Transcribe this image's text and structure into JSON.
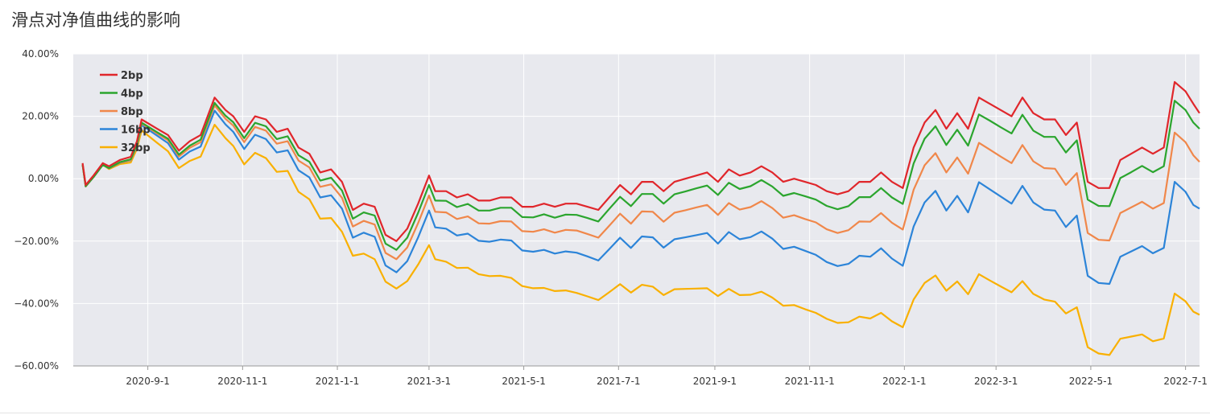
{
  "chart_data": {
    "type": "line",
    "title": "滑点对净值曲线的影响",
    "x_start": "2020-07-15",
    "x_end": "2022-07-10",
    "ylim": [
      -60,
      40
    ],
    "y_ticks": [
      40,
      20,
      0,
      -20,
      -40,
      -60
    ],
    "y_tick_labels": [
      "40.00%",
      "20.00%",
      "0.00%",
      "−20.00%",
      "−40.00%",
      "−60.00%"
    ],
    "x_ticks": [
      "2020-09-01",
      "2020-11-01",
      "2021-01-01",
      "2021-03-01",
      "2021-05-01",
      "2021-07-01",
      "2021-09-01",
      "2021-11-01",
      "2022-01-01",
      "2022-03-01",
      "2022-05-01",
      "2022-07-01"
    ],
    "x_tick_labels": [
      "2020-9-1",
      "2020-11-1",
      "2021-1-1",
      "2021-3-1",
      "2021-5-1",
      "2021-7-1",
      "2021-9-1",
      "2021-11-1",
      "2022-1-1",
      "2022-3-1",
      "2022-5-1",
      "2022-7-1"
    ],
    "grid": true,
    "legend_position": "top-left",
    "x": [
      "2020-07-21",
      "2020-07-23",
      "2020-07-28",
      "2020-08-03",
      "2020-08-07",
      "2020-08-14",
      "2020-08-21",
      "2020-08-25",
      "2020-08-28",
      "2020-09-07",
      "2020-09-14",
      "2020-09-21",
      "2020-09-28",
      "2020-10-05",
      "2020-10-14",
      "2020-10-21",
      "2020-10-26",
      "2020-11-02",
      "2020-11-09",
      "2020-11-16",
      "2020-11-23",
      "2020-11-30",
      "2020-12-07",
      "2020-12-14",
      "2020-12-21",
      "2020-12-28",
      "2021-01-04",
      "2021-01-11",
      "2021-01-18",
      "2021-01-25",
      "2021-02-01",
      "2021-02-08",
      "2021-02-15",
      "2021-02-22",
      "2021-03-01",
      "2021-03-05",
      "2021-03-12",
      "2021-03-19",
      "2021-03-26",
      "2021-04-02",
      "2021-04-09",
      "2021-04-16",
      "2021-04-23",
      "2021-04-30",
      "2021-05-07",
      "2021-05-14",
      "2021-05-21",
      "2021-05-28",
      "2021-06-04",
      "2021-06-11",
      "2021-06-18",
      "2021-06-25",
      "2021-07-02",
      "2021-07-09",
      "2021-07-16",
      "2021-07-23",
      "2021-07-30",
      "2021-08-06",
      "2021-08-13",
      "2021-08-20",
      "2021-08-27",
      "2021-09-03",
      "2021-09-10",
      "2021-09-17",
      "2021-09-24",
      "2021-10-01",
      "2021-10-08",
      "2021-10-15",
      "2021-10-22",
      "2021-10-29",
      "2021-11-05",
      "2021-11-12",
      "2021-11-19",
      "2021-11-26",
      "2021-12-03",
      "2021-12-10",
      "2021-12-17",
      "2021-12-24",
      "2021-12-31",
      "2022-01-07",
      "2022-01-14",
      "2022-01-21",
      "2022-01-28",
      "2022-02-04",
      "2022-02-11",
      "2022-02-18",
      "2022-02-25",
      "2022-03-04",
      "2022-03-11",
      "2022-03-18",
      "2022-03-25",
      "2022-04-01",
      "2022-04-08",
      "2022-04-15",
      "2022-04-22",
      "2022-04-29",
      "2022-05-06",
      "2022-05-13",
      "2022-05-20",
      "2022-05-27",
      "2022-06-03",
      "2022-06-10",
      "2022-06-17",
      "2022-06-24",
      "2022-07-01",
      "2022-07-06",
      "2022-07-10"
    ],
    "series": [
      {
        "name": "2bp",
        "color": "#e0262b",
        "values": [
          5,
          -2,
          1,
          5,
          4,
          6,
          7,
          12,
          19,
          16,
          14,
          9,
          12,
          14,
          26,
          22,
          20,
          15,
          20,
          19,
          15,
          16,
          10,
          8,
          2,
          3,
          -1,
          -10,
          -8,
          -9,
          -18,
          -20,
          -16,
          -8,
          1,
          -4,
          -4,
          -6,
          -5,
          -7,
          -7,
          -6,
          -6,
          -9,
          -9,
          -8,
          -9,
          -8,
          -8,
          -9,
          -10,
          -6,
          -2,
          -5,
          -1,
          -1,
          -4,
          -1,
          0,
          1,
          2,
          -1,
          3,
          1,
          2,
          4,
          2,
          -1,
          0,
          -1,
          -2,
          -4,
          -5,
          -4,
          -1,
          -1,
          2,
          -1,
          -3,
          10,
          18,
          22,
          16,
          21,
          16,
          26,
          24,
          22,
          20,
          26,
          21,
          19,
          19,
          14,
          18,
          -1,
          -3,
          -3,
          6,
          8,
          10,
          8,
          10,
          31,
          28,
          24,
          21
        ]
      },
      {
        "name": "4bp",
        "color": "#2ba52e",
        "values": [
          4.5,
          -2.4,
          0.5,
          4.4,
          3.4,
          5.3,
          6.2,
          11.1,
          18,
          14.9,
          12.8,
          7.7,
          10.6,
          12.5,
          24.3,
          20.2,
          18.1,
          13,
          17.9,
          16.8,
          12.7,
          13.6,
          7.5,
          5.4,
          -0.6,
          0.3,
          -3.8,
          -12.8,
          -10.8,
          -11.8,
          -20.8,
          -22.8,
          -18.9,
          -10.9,
          -2,
          -7,
          -7.1,
          -9.1,
          -8.1,
          -10.2,
          -10.2,
          -9.3,
          -9.3,
          -12.3,
          -12.4,
          -11.4,
          -12.5,
          -11.5,
          -11.6,
          -12.6,
          -13.7,
          -9.7,
          -5.8,
          -8.8,
          -4.9,
          -4.9,
          -8,
          -5,
          -4.1,
          -3.1,
          -2.2,
          -5.2,
          -1.3,
          -3.3,
          -2.4,
          -0.4,
          -2.5,
          -5.5,
          -4.6,
          -5.6,
          -6.7,
          -8.7,
          -9.8,
          -8.8,
          -5.9,
          -5.9,
          -3,
          -6,
          -8.1,
          4.9,
          12.8,
          16.8,
          10.8,
          15.7,
          10.6,
          20.6,
          18.6,
          16.5,
          14.5,
          20.5,
          15.4,
          13.4,
          13.4,
          8.4,
          12.3,
          -6.7,
          -8.7,
          -8.8,
          0.2,
          2.1,
          4.1,
          2.1,
          4,
          25,
          22,
          18,
          16
        ]
      },
      {
        "name": "8bp",
        "color": "#f0874a",
        "values": [
          4.5,
          -2.5,
          0.5,
          4.5,
          3.3,
          5.2,
          6,
          10.9,
          17.7,
          14.5,
          12.3,
          7.1,
          9.9,
          11.7,
          23.5,
          19.2,
          17,
          11.7,
          16.6,
          15.4,
          11.2,
          12,
          5.8,
          3.6,
          -2.6,
          -1.8,
          -6.1,
          -15.3,
          -13.5,
          -14.7,
          -23.8,
          -25.8,
          -22,
          -14.2,
          -5.4,
          -10.6,
          -10.8,
          -12.9,
          -12.1,
          -14.3,
          -14.4,
          -13.6,
          -13.7,
          -16.8,
          -17,
          -16.2,
          -17.3,
          -16.4,
          -16.6,
          -17.7,
          -18.9,
          -15.1,
          -11.2,
          -14.4,
          -10.5,
          -10.6,
          -13.8,
          -10.9,
          -10.1,
          -9.2,
          -8.4,
          -11.6,
          -7.8,
          -9.9,
          -9.1,
          -7.2,
          -9.4,
          -12.5,
          -11.7,
          -12.9,
          -14,
          -16.2,
          -17.4,
          -16.5,
          -13.7,
          -13.8,
          -11,
          -14.1,
          -16.3,
          -3.5,
          4.3,
          8.2,
          2,
          6.8,
          1.6,
          11.5,
          9.3,
          7.1,
          5,
          10.8,
          5.6,
          3.4,
          3.2,
          -2,
          1.8,
          -17.4,
          -19.6,
          -19.8,
          -11,
          -9.2,
          -7.4,
          -9.6,
          -7.8,
          14.8,
          11.7,
          7.5,
          5.4
        ]
      },
      {
        "name": "16bp",
        "color": "#2c84d8",
        "values": [
          4.5,
          -2.5,
          0.5,
          4.5,
          3.3,
          5.1,
          5.9,
          10.6,
          17.2,
          13.8,
          11.4,
          6.1,
          8.7,
          10.3,
          21.8,
          17.4,
          15,
          9.5,
          14.1,
          12.7,
          8.4,
          9.1,
          2.7,
          0.4,
          -6,
          -5.3,
          -9.6,
          -18.9,
          -17.3,
          -18.6,
          -27.8,
          -30,
          -26.4,
          -18.8,
          -10.2,
          -15.6,
          -16,
          -18.2,
          -17.6,
          -19.9,
          -20.2,
          -19.5,
          -19.8,
          -23,
          -23.4,
          -22.8,
          -24,
          -23.3,
          -23.7,
          -24.9,
          -26.2,
          -22.6,
          -18.9,
          -22.2,
          -18.5,
          -18.8,
          -22.1,
          -19.4,
          -18.8,
          -18.1,
          -17.4,
          -20.8,
          -17.1,
          -19.4,
          -18.7,
          -16.9,
          -19.2,
          -22.5,
          -21.8,
          -23.1,
          -24.4,
          -26.7,
          -28,
          -27.3,
          -24.7,
          -25,
          -22.3,
          -25.6,
          -27.9,
          -15.3,
          -7.6,
          -3.9,
          -10.2,
          -5.5,
          -10.8,
          -1.1,
          -3.4,
          -5.7,
          -8,
          -2.3,
          -7.6,
          -9.9,
          -10.2,
          -15.5,
          -11.8,
          -31.1,
          -33.4,
          -33.7,
          -25,
          -23.3,
          -21.6,
          -23.9,
          -22.2,
          -1,
          -4.2,
          -8.4,
          -9.6
        ]
      },
      {
        "name": "32bp",
        "color": "#f9b000",
        "values": [
          4.6,
          -2.3,
          0.6,
          4.5,
          3.1,
          4.7,
          5.2,
          9.6,
          15.5,
          11.5,
          8.8,
          3.4,
          5.7,
          7.1,
          17.3,
          13,
          10.5,
          4.6,
          8.3,
          6.6,
          2.2,
          2.5,
          -4.2,
          -6.6,
          -12.8,
          -12.6,
          -17,
          -24.7,
          -24,
          -25.8,
          -33,
          -35.2,
          -32.8,
          -27.5,
          -21.3,
          -25.8,
          -26.6,
          -28.6,
          -28.5,
          -30.6,
          -31.2,
          -31.1,
          -31.8,
          -34.4,
          -35.1,
          -35,
          -36,
          -35.8,
          -36.6,
          -37.7,
          -38.9,
          -36.4,
          -33.8,
          -36.5,
          -34,
          -34.6,
          -37.3,
          -35.4,
          -35.3,
          -35.2,
          -35.1,
          -37.6,
          -35.3,
          -37.3,
          -37.2,
          -36.2,
          -38.1,
          -40.7,
          -40.5,
          -41.8,
          -43,
          -44.9,
          -46.2,
          -46,
          -44.2,
          -44.8,
          -43,
          -45.7,
          -47.6,
          -38.7,
          -33.4,
          -31,
          -35.9,
          -32.9,
          -37,
          -30.6,
          -32.6,
          -34.5,
          -36.4,
          -32.8,
          -36.9,
          -38.7,
          -39.4,
          -43.2,
          -41.2,
          -54,
          -56,
          -56.5,
          -51.3,
          -50.6,
          -49.9,
          -52.1,
          -51.2,
          -36.8,
          -39.3,
          -42.6,
          -43.6
        ]
      }
    ]
  }
}
